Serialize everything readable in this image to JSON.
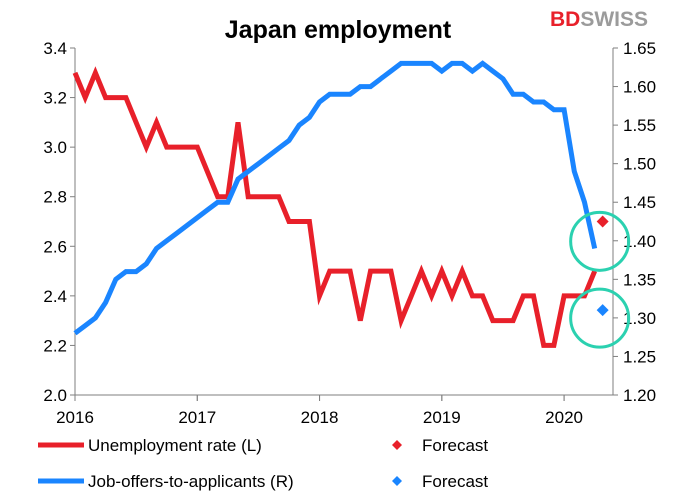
{
  "brand": {
    "left": "BD",
    "right": "SWISS",
    "left_color": "#e8202a",
    "right_color": "#9b9b9b"
  },
  "chart_data": {
    "type": "line",
    "title": "Japan employment",
    "x_ticks": [
      "2016",
      "2017",
      "2018",
      "2019",
      "2020"
    ],
    "y_left": {
      "min": 2.0,
      "max": 3.4,
      "ticks": [
        "2.0",
        "2.2",
        "2.4",
        "2.6",
        "2.8",
        "3.0",
        "3.2",
        "3.4"
      ]
    },
    "y_right": {
      "min": 1.2,
      "max": 1.65,
      "ticks": [
        "1.20",
        "1.25",
        "1.30",
        "1.35",
        "1.40",
        "1.45",
        "1.50",
        "1.55",
        "1.60",
        "1.65"
      ]
    },
    "grid": false,
    "series": [
      {
        "name": "Unemployment rate (L)",
        "axis": "left",
        "color": "#e8202a",
        "x": [
          "2016-01",
          "2016-02",
          "2016-03",
          "2016-04",
          "2016-05",
          "2016-06",
          "2016-07",
          "2016-08",
          "2016-09",
          "2016-10",
          "2016-11",
          "2016-12",
          "2017-01",
          "2017-02",
          "2017-03",
          "2017-04",
          "2017-05",
          "2017-06",
          "2017-07",
          "2017-08",
          "2017-09",
          "2017-10",
          "2017-11",
          "2017-12",
          "2018-01",
          "2018-02",
          "2018-03",
          "2018-04",
          "2018-05",
          "2018-06",
          "2018-07",
          "2018-08",
          "2018-09",
          "2018-10",
          "2018-11",
          "2018-12",
          "2019-01",
          "2019-02",
          "2019-03",
          "2019-04",
          "2019-05",
          "2019-06",
          "2019-07",
          "2019-08",
          "2019-09",
          "2019-10",
          "2019-11",
          "2019-12",
          "2020-01",
          "2020-02",
          "2020-03",
          "2020-04"
        ],
        "values": [
          3.3,
          3.2,
          3.3,
          3.2,
          3.2,
          3.2,
          3.1,
          3.0,
          3.1,
          3.0,
          3.0,
          3.0,
          3.0,
          2.9,
          2.8,
          2.8,
          3.1,
          2.8,
          2.8,
          2.8,
          2.8,
          2.7,
          2.7,
          2.7,
          2.4,
          2.5,
          2.5,
          2.5,
          2.3,
          2.5,
          2.5,
          2.5,
          2.3,
          2.4,
          2.5,
          2.4,
          2.5,
          2.4,
          2.5,
          2.4,
          2.4,
          2.3,
          2.3,
          2.3,
          2.4,
          2.4,
          2.2,
          2.2,
          2.4,
          2.4,
          2.4,
          2.5
        ]
      },
      {
        "name": "Job-offers-to-applicants (R)",
        "axis": "right",
        "color": "#1a85ff",
        "x": [
          "2016-01",
          "2016-02",
          "2016-03",
          "2016-04",
          "2016-05",
          "2016-06",
          "2016-07",
          "2016-08",
          "2016-09",
          "2016-10",
          "2016-11",
          "2016-12",
          "2017-01",
          "2017-02",
          "2017-03",
          "2017-04",
          "2017-05",
          "2017-06",
          "2017-07",
          "2017-08",
          "2017-09",
          "2017-10",
          "2017-11",
          "2017-12",
          "2018-01",
          "2018-02",
          "2018-03",
          "2018-04",
          "2018-05",
          "2018-06",
          "2018-07",
          "2018-08",
          "2018-09",
          "2018-10",
          "2018-11",
          "2018-12",
          "2019-01",
          "2019-02",
          "2019-03",
          "2019-04",
          "2019-05",
          "2019-06",
          "2019-07",
          "2019-08",
          "2019-09",
          "2019-10",
          "2019-11",
          "2019-12",
          "2020-01",
          "2020-02",
          "2020-03",
          "2020-04"
        ],
        "values": [
          1.28,
          1.29,
          1.3,
          1.32,
          1.35,
          1.36,
          1.36,
          1.37,
          1.39,
          1.4,
          1.41,
          1.42,
          1.43,
          1.44,
          1.45,
          1.45,
          1.48,
          1.49,
          1.5,
          1.51,
          1.52,
          1.53,
          1.55,
          1.56,
          1.58,
          1.59,
          1.59,
          1.59,
          1.6,
          1.6,
          1.61,
          1.62,
          1.63,
          1.63,
          1.63,
          1.63,
          1.62,
          1.63,
          1.63,
          1.62,
          1.63,
          1.62,
          1.61,
          1.59,
          1.59,
          1.58,
          1.58,
          1.57,
          1.57,
          1.49,
          1.45,
          1.39
        ]
      }
    ],
    "forecasts": [
      {
        "name": "Forecast",
        "axis": "left",
        "color": "#e8202a",
        "x": "2020-04",
        "value": 2.7
      },
      {
        "name": "Forecast",
        "axis": "right",
        "color": "#1a85ff",
        "x": "2020-04",
        "value": 1.31
      }
    ],
    "highlight_circles": [
      {
        "axis": "left",
        "x": "2020-04",
        "value": 2.62,
        "color": "#2bd1b0"
      },
      {
        "axis": "left",
        "x": "2020-04",
        "value": 2.31,
        "color": "#2bd1b0"
      }
    ],
    "legend": [
      {
        "label": "Unemployment rate (L)",
        "kind": "line",
        "color": "#e8202a"
      },
      {
        "label": "Forecast",
        "kind": "diamond",
        "color": "#e8202a"
      },
      {
        "label": "Job-offers-to-applicants (R)",
        "kind": "line",
        "color": "#1a85ff"
      },
      {
        "label": "Forecast",
        "kind": "diamond",
        "color": "#1a85ff"
      }
    ],
    "legend_position": "bottom"
  }
}
